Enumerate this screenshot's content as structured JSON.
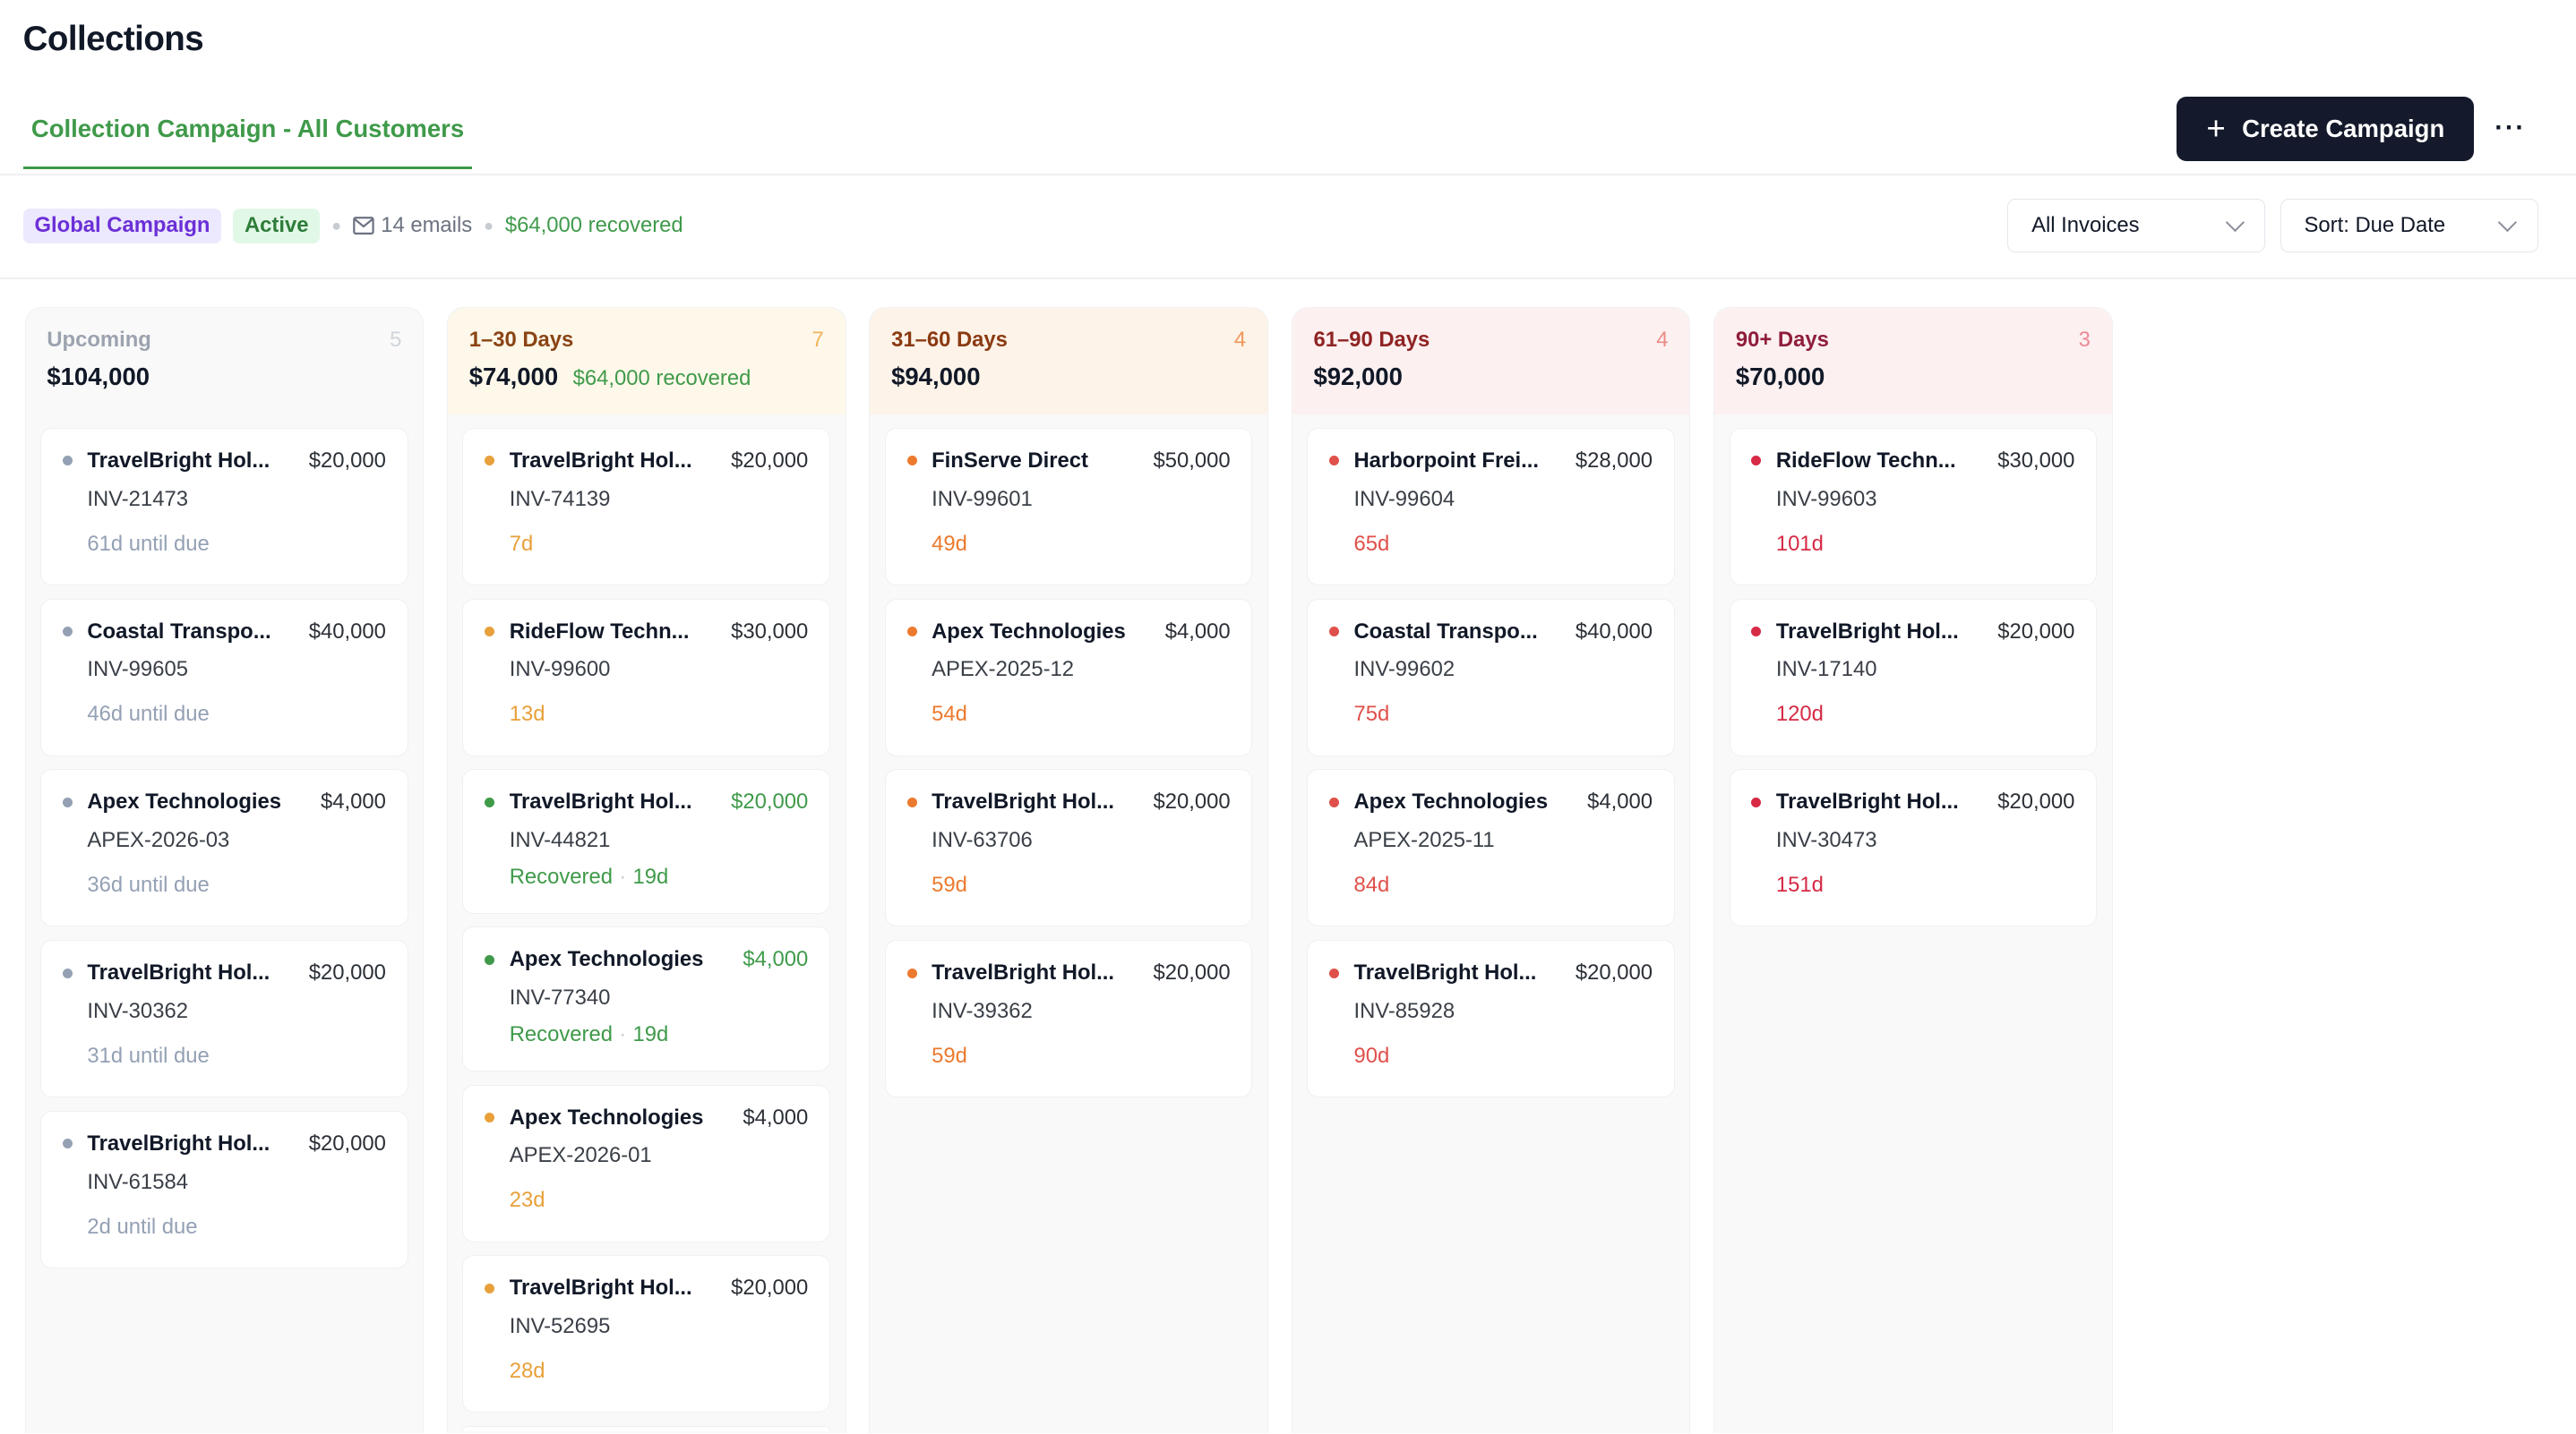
{
  "page": {
    "title": "Collections"
  },
  "tabs": [
    {
      "label": "Collection Campaign - All Customers",
      "active": true
    }
  ],
  "actions": {
    "create_label": "Create Campaign",
    "create_icon": "plus-icon",
    "more_icon": "more-horizontal-icon"
  },
  "campaign": {
    "scope_badge": "Global Campaign",
    "status_badge": "Active",
    "emails": "14 emails",
    "emails_icon": "mail-icon",
    "recovered": "$64,000 recovered"
  },
  "filters": {
    "invoices": "All Invoices",
    "sort": "Sort: Due Date"
  },
  "colors": {
    "accent": "#3f9a4a",
    "primary_button": "#141a2b",
    "upcoming": "#94a0b4",
    "d1_30": "#e8a03a",
    "d31_60": "#ec7a2e",
    "d61_90": "#e0504a",
    "d90": "#d62a45"
  },
  "columns": [
    {
      "title": "Upcoming",
      "count": "5",
      "total": "$104,000",
      "recovered": "",
      "bg": "#f9f9f9",
      "title_color": "#9ca3af",
      "count_color": "#d1d5db",
      "dot": "#94a0b4",
      "days_color": "#94a0b4",
      "cards": [
        {
          "name": "TravelBright Hol...",
          "amount": "$20,000",
          "invoice": "INV-21473",
          "days": "61d until due"
        },
        {
          "name": "Coastal Transpo...",
          "amount": "$40,000",
          "invoice": "INV-99605",
          "days": "46d until due"
        },
        {
          "name": "Apex Technologies",
          "amount": "$4,000",
          "invoice": "APEX-2026-03",
          "days": "36d until due"
        },
        {
          "name": "TravelBright Hol...",
          "amount": "$20,000",
          "invoice": "INV-30362",
          "days": "31d until due"
        },
        {
          "name": "TravelBright Hol...",
          "amount": "$20,000",
          "invoice": "INV-61584",
          "days": "2d until due"
        }
      ]
    },
    {
      "title": "1–30 Days",
      "count": "7",
      "total": "$74,000",
      "recovered": "$64,000 recovered",
      "bg": "#fdf8e9",
      "title_color": "#8a4414",
      "count_color": "#f0b35c",
      "dot": "#e8a03a",
      "days_color": "#e8a03a",
      "cards": [
        {
          "name": "TravelBright Hol...",
          "amount": "$20,000",
          "invoice": "INV-74139",
          "days": "7d"
        },
        {
          "name": "RideFlow Techn...",
          "amount": "$30,000",
          "invoice": "INV-99600",
          "days": "13d"
        },
        {
          "name": "TravelBright Hol...",
          "amount": "$20,000",
          "invoice": "INV-44821",
          "days": "19d",
          "status": "Recovered"
        },
        {
          "name": "Apex Technologies",
          "amount": "$4,000",
          "invoice": "INV-77340",
          "days": "19d",
          "status": "Recovered"
        },
        {
          "name": "Apex Technologies",
          "amount": "$4,000",
          "invoice": "APEX-2026-01",
          "days": "23d"
        },
        {
          "name": "TravelBright Hol...",
          "amount": "$20,000",
          "invoice": "INV-52695",
          "days": "28d"
        },
        {
          "name": "",
          "amount": "",
          "invoice": "",
          "days": ""
        }
      ]
    },
    {
      "title": "31–60 Days",
      "count": "4",
      "total": "$94,000",
      "recovered": "",
      "bg": "#fdf3e8",
      "title_color": "#8a3a12",
      "count_color": "#f0965a",
      "dot": "#ec7a2e",
      "days_color": "#ec7a2e",
      "cards": [
        {
          "name": "FinServe Direct",
          "amount": "$50,000",
          "invoice": "INV-99601",
          "days": "49d"
        },
        {
          "name": "Apex Technologies",
          "amount": "$4,000",
          "invoice": "APEX-2025-12",
          "days": "54d"
        },
        {
          "name": "TravelBright Hol...",
          "amount": "$20,000",
          "invoice": "INV-63706",
          "days": "59d"
        },
        {
          "name": "TravelBright Hol...",
          "amount": "$20,000",
          "invoice": "INV-39362",
          "days": "59d"
        }
      ]
    },
    {
      "title": "61–90 Days",
      "count": "4",
      "total": "$92,000",
      "recovered": "",
      "bg": "#fcf0f0",
      "title_color": "#8f2323",
      "count_color": "#ec8a84",
      "dot": "#e0504a",
      "days_color": "#e0504a",
      "cards": [
        {
          "name": "Harborpoint Frei...",
          "amount": "$28,000",
          "invoice": "INV-99604",
          "days": "65d"
        },
        {
          "name": "Coastal Transpo...",
          "amount": "$40,000",
          "invoice": "INV-99602",
          "days": "75d"
        },
        {
          "name": "Apex Technologies",
          "amount": "$4,000",
          "invoice": "APEX-2025-11",
          "days": "84d"
        },
        {
          "name": "TravelBright Hol...",
          "amount": "$20,000",
          "invoice": "INV-85928",
          "days": "90d"
        }
      ]
    },
    {
      "title": "90+ Days",
      "count": "3",
      "total": "$70,000",
      "recovered": "",
      "bg": "#fcf0f1",
      "title_color": "#8f1d3a",
      "count_color": "#ec8a96",
      "dot": "#d62a45",
      "days_color": "#d62a45",
      "cards": [
        {
          "name": "RideFlow Techn...",
          "amount": "$30,000",
          "invoice": "INV-99603",
          "days": "101d"
        },
        {
          "name": "TravelBright Hol...",
          "amount": "$20,000",
          "invoice": "INV-17140",
          "days": "120d"
        },
        {
          "name": "TravelBright Hol...",
          "amount": "$20,000",
          "invoice": "INV-30473",
          "days": "151d"
        }
      ]
    }
  ]
}
